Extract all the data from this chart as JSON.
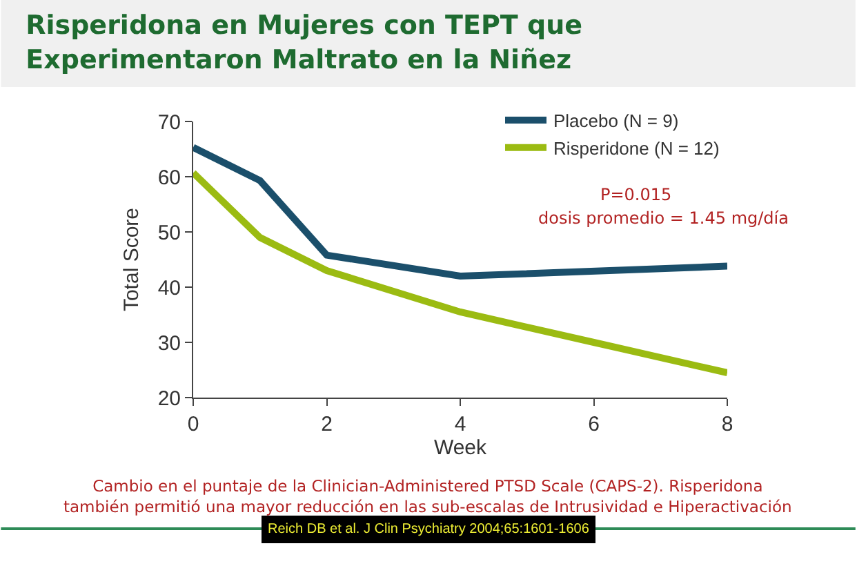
{
  "chart_data": {
    "type": "line",
    "title": "Risperidona en Mujeres con TEPT que Experimentaron Maltrato en la Niñez",
    "xlabel": "Week",
    "ylabel": "Total Score",
    "series": [
      {
        "name": "Placebo (N = 9)",
        "color": "#1b4f6b",
        "x": [
          0,
          1,
          2,
          4,
          8
        ],
        "values": [
          65.3,
          59.3,
          45.8,
          42,
          43.8
        ]
      },
      {
        "name": "Risperidone (N = 12)",
        "color": "#9bbb12",
        "x": [
          0,
          1,
          2,
          4,
          6,
          8
        ],
        "values": [
          60.7,
          49,
          43,
          35.5,
          30,
          24.5
        ]
      }
    ],
    "xlim": [
      0,
      8
    ],
    "xticks": [
      0,
      2,
      4,
      6,
      8
    ],
    "ylim": [
      20,
      70
    ],
    "yticks": [
      20,
      30,
      40,
      50,
      60,
      70
    ],
    "grid": false,
    "legend": "top right",
    "marker": "none",
    "line_style": "solid",
    "annotations": [
      "P=0.015",
      "dosis promedio = 1.45 mg/día",
      "Cambio en el puntaje de la Clinician-Administered PTSD Scale (CAPS-2). Risperidona también permitió una mayor reducción en las sub-escalas de Intrusividad e Hiperactivación",
      "Reich DB et al. J Clin Psychiatry 2004;65:1601-1606"
    ]
  }
}
